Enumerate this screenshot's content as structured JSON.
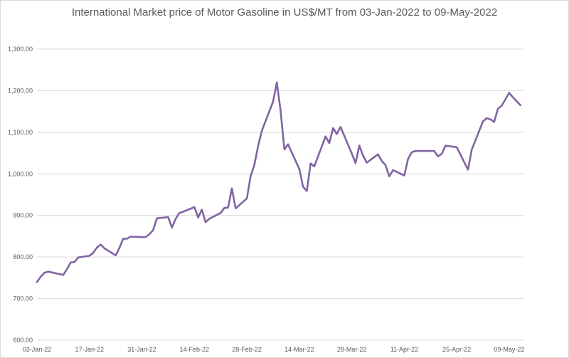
{
  "chart_data": {
    "type": "line",
    "title": "International Market price of Motor Gasoline in US$/MT from 03-Jan-2022 to 09-May-2022",
    "xlabel": "",
    "ylabel": "",
    "ylim": [
      600,
      1300
    ],
    "yticks": [
      "600.00",
      "700.00",
      "800.00",
      "900.00",
      "1,000.00",
      "1,100.00",
      "1,200.00",
      "1,300.00"
    ],
    "xticks": [
      "03-Jan-22",
      "17-Jan-22",
      "31-Jan-22",
      "14-Feb-22",
      "28-Feb-22",
      "14-Mar-22",
      "28-Mar-22",
      "11-Apr-22",
      "25-Apr-22",
      "09-May-22"
    ],
    "grid": true,
    "legend": "none",
    "line_color": "#8064a2",
    "series": [
      {
        "values": [
          [
            "2022-01-03",
            740
          ],
          [
            "2022-01-04",
            753
          ],
          [
            "2022-01-05",
            762
          ],
          [
            "2022-01-06",
            765
          ],
          [
            "2022-01-10",
            757
          ],
          [
            "2022-01-11",
            771
          ],
          [
            "2022-01-12",
            787
          ],
          [
            "2022-01-13",
            788
          ],
          [
            "2022-01-14",
            799
          ],
          [
            "2022-01-17",
            803
          ],
          [
            "2022-01-18",
            810
          ],
          [
            "2022-01-19",
            823
          ],
          [
            "2022-01-20",
            830
          ],
          [
            "2022-01-21",
            821
          ],
          [
            "2022-01-24",
            804
          ],
          [
            "2022-01-25",
            822
          ],
          [
            "2022-01-26",
            844
          ],
          [
            "2022-01-27",
            844
          ],
          [
            "2022-01-28",
            849
          ],
          [
            "2022-01-31",
            848
          ],
          [
            "2022-02-01",
            848
          ],
          [
            "2022-02-02",
            855
          ],
          [
            "2022-02-03",
            865
          ],
          [
            "2022-02-04",
            893
          ],
          [
            "2022-02-07",
            896
          ],
          [
            "2022-02-08",
            871
          ],
          [
            "2022-02-09",
            892
          ],
          [
            "2022-02-10",
            906
          ],
          [
            "2022-02-11",
            909
          ],
          [
            "2022-02-14",
            920
          ],
          [
            "2022-02-15",
            895
          ],
          [
            "2022-02-16",
            914
          ],
          [
            "2022-02-17",
            884
          ],
          [
            "2022-02-18",
            892
          ],
          [
            "2022-02-21",
            906
          ],
          [
            "2022-02-22",
            918
          ],
          [
            "2022-02-23",
            919
          ],
          [
            "2022-02-24",
            965
          ],
          [
            "2022-02-25",
            917
          ],
          [
            "2022-02-28",
            941
          ],
          [
            "2022-03-01",
            994
          ],
          [
            "2022-03-02",
            1021
          ],
          [
            "2022-03-03",
            1067
          ],
          [
            "2022-03-04",
            1104
          ],
          [
            "2022-03-07",
            1174
          ],
          [
            "2022-03-08",
            1220
          ],
          [
            "2022-03-09",
            1152
          ],
          [
            "2022-03-10",
            1059
          ],
          [
            "2022-03-11",
            1071
          ],
          [
            "2022-03-14",
            1012
          ],
          [
            "2022-03-15",
            969
          ],
          [
            "2022-03-16",
            959
          ],
          [
            "2022-03-17",
            1025
          ],
          [
            "2022-03-18",
            1018
          ],
          [
            "2022-03-21",
            1090
          ],
          [
            "2022-03-22",
            1074
          ],
          [
            "2022-03-23",
            1110
          ],
          [
            "2022-03-24",
            1096
          ],
          [
            "2022-03-25",
            1113
          ],
          [
            "2022-03-28",
            1049
          ],
          [
            "2022-03-29",
            1026
          ],
          [
            "2022-03-30",
            1068
          ],
          [
            "2022-03-31",
            1044
          ],
          [
            "2022-04-01",
            1027
          ],
          [
            "2022-04-04",
            1047
          ],
          [
            "2022-04-05",
            1031
          ],
          [
            "2022-04-06",
            1021
          ],
          [
            "2022-04-07",
            994
          ],
          [
            "2022-04-08",
            1009
          ],
          [
            "2022-04-11",
            996
          ],
          [
            "2022-04-12",
            1036
          ],
          [
            "2022-04-13",
            1052
          ],
          [
            "2022-04-14",
            1055
          ],
          [
            "2022-04-19",
            1055
          ],
          [
            "2022-04-20",
            1042
          ],
          [
            "2022-04-21",
            1048
          ],
          [
            "2022-04-22",
            1068
          ],
          [
            "2022-04-25",
            1064
          ],
          [
            "2022-04-28",
            1010
          ],
          [
            "2022-04-29",
            1058
          ],
          [
            "2022-05-02",
            1126
          ],
          [
            "2022-05-03",
            1134
          ],
          [
            "2022-05-04",
            1131
          ],
          [
            "2022-05-05",
            1125
          ],
          [
            "2022-05-06",
            1157
          ],
          [
            "2022-05-07",
            1164
          ],
          [
            "2022-05-09",
            1195
          ],
          [
            "2022-05-10",
            1184
          ],
          [
            "2022-05-12",
            1165
          ]
        ]
      }
    ]
  }
}
